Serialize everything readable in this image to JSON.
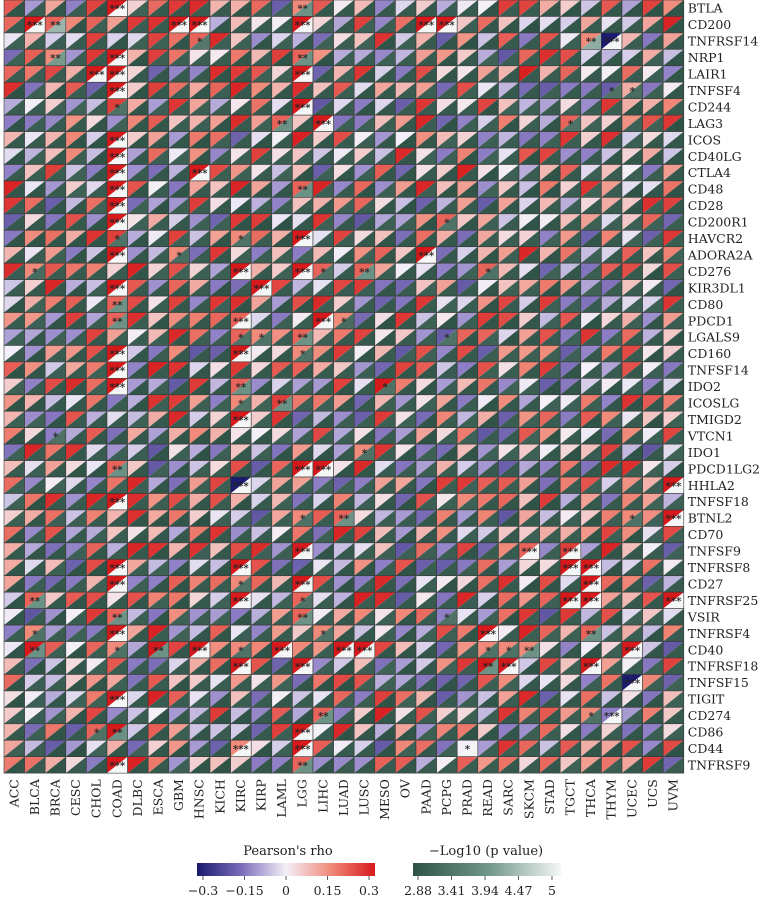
{
  "chart_data": {
    "type": "heatmap",
    "title": "",
    "xlabel": "",
    "ylabel": "",
    "cell_style": "split-triangle: upper-left = Pearson's rho, lower-right = -Log10 (p value)",
    "columns": [
      "ACC",
      "BLCA",
      "BRCA",
      "CESC",
      "CHOL",
      "COAD",
      "DLBC",
      "ESCA",
      "GBM",
      "HNSC",
      "KICH",
      "KIRC",
      "KIRP",
      "LAML",
      "LGG",
      "LIHC",
      "LUAD",
      "LUSC",
      "MESO",
      "OV",
      "PAAD",
      "PCPG",
      "PRAD",
      "READ",
      "SARC",
      "SKCM",
      "STAD",
      "TGCT",
      "THCA",
      "THYM",
      "UCEC",
      "UCS",
      "UVM"
    ],
    "rows": [
      "BTLA",
      "CD200",
      "TNFRSF14",
      "NRP1",
      "LAIR1",
      "TNFSF4",
      "CD244",
      "LAG3",
      "ICOS",
      "CD40LG",
      "CTLA4",
      "CD48",
      "CD28",
      "CD200R1",
      "HAVCR2",
      "ADORA2A",
      "CD276",
      "KIR3DL1",
      "CD80",
      "PDCD1",
      "LGALS9",
      "CD160",
      "TNFSF14",
      "IDO2",
      "ICOSLG",
      "TMIGD2",
      "VTCN1",
      "IDO1",
      "PDCD1LG2",
      "HHLA2",
      "TNFSF18",
      "BTNL2",
      "CD70",
      "TNFSF9",
      "TNFRSF8",
      "CD27",
      "TNFRSF25",
      "VSIR",
      "TNFRSF4",
      "CD40",
      "TNFRSF18",
      "TNFSF15",
      "TIGIT",
      "CD274",
      "CD86",
      "CD44",
      "TNFRSF9"
    ],
    "colors": {
      "rho_low": "#1a1a6e",
      "rho_mid_low": "#8f7fc6",
      "rho_zero": "#f4f0f8",
      "rho_mid_high": "#f08a7a",
      "rho_high": "#d7191c",
      "p_low": "#2f5247",
      "p_mid": "#5f8577",
      "p_high": "#f4f7f5",
      "grid": "#3a3a3a"
    },
    "sample_note": "values approximated from picture",
    "highlighted_cells": [
      {
        "row": "BTLA",
        "col": "COAD",
        "rho": 0.3,
        "logp": 5,
        "stars": "***"
      },
      {
        "row": "BTLA",
        "col": "LGG",
        "rho": 0.15,
        "logp": 3.9,
        "stars": "**"
      },
      {
        "row": "CD200",
        "col": "BLCA",
        "rho": 0.3,
        "logp": 5,
        "stars": "***"
      },
      {
        "row": "CD200",
        "col": "BRCA",
        "rho": 0.2,
        "logp": 4.3,
        "stars": "**"
      },
      {
        "row": "CD200",
        "col": "GBM",
        "rho": 0.3,
        "logp": 5,
        "stars": "***"
      },
      {
        "row": "CD200",
        "col": "HNSC",
        "rho": 0.3,
        "logp": 5,
        "stars": "***"
      },
      {
        "row": "CD200",
        "col": "LGG",
        "rho": 0.3,
        "logp": 5,
        "stars": "***"
      },
      {
        "row": "CD200",
        "col": "PAAD",
        "rho": 0.3,
        "logp": 5,
        "stars": "***"
      },
      {
        "row": "CD200",
        "col": "PCPG",
        "rho": 0.3,
        "logp": 5,
        "stars": "***"
      },
      {
        "row": "TNFRSF14",
        "col": "HNSC",
        "rho": 0.2,
        "logp": 3.5,
        "stars": "*"
      },
      {
        "row": "TNFRSF14",
        "col": "THCA",
        "rho": 0.15,
        "logp": 4.2,
        "stars": "**"
      },
      {
        "row": "TNFRSF14",
        "col": "THYM",
        "rho": -0.3,
        "logp": 5,
        "stars": "***"
      },
      {
        "row": "NRP1",
        "col": "BRCA",
        "rho": 0.15,
        "logp": 4.0,
        "stars": "**"
      },
      {
        "row": "NRP1",
        "col": "COAD",
        "rho": 0.3,
        "logp": 5,
        "stars": "***"
      },
      {
        "row": "NRP1",
        "col": "LGG",
        "rho": 0.2,
        "logp": 3.9,
        "stars": "**"
      },
      {
        "row": "LAIR1",
        "col": "CHOL",
        "rho": 0.3,
        "logp": 5,
        "stars": "***"
      },
      {
        "row": "LAIR1",
        "col": "COAD",
        "rho": 0.3,
        "logp": 5,
        "stars": "***"
      },
      {
        "row": "LAIR1",
        "col": "LGG",
        "rho": 0.3,
        "logp": 5,
        "stars": "***"
      },
      {
        "row": "TNFSF4",
        "col": "COAD",
        "rho": 0.3,
        "logp": 5,
        "stars": "***"
      },
      {
        "row": "TNFSF4",
        "col": "THYM",
        "rho": -0.2,
        "logp": 3.4,
        "stars": "*"
      },
      {
        "row": "TNFSF4",
        "col": "UCEC",
        "rho": 0.1,
        "logp": 3.3,
        "stars": "*"
      },
      {
        "row": "CD244",
        "col": "COAD",
        "rho": 0.25,
        "logp": 3.4,
        "stars": "*"
      },
      {
        "row": "CD244",
        "col": "LGG",
        "rho": 0.3,
        "logp": 5,
        "stars": "***"
      },
      {
        "row": "LAG3",
        "col": "LAML",
        "rho": 0.2,
        "logp": 3.9,
        "stars": "**"
      },
      {
        "row": "LAG3",
        "col": "LIHC",
        "rho": 0.3,
        "logp": 5,
        "stars": "***"
      },
      {
        "row": "LAG3",
        "col": "TGCT",
        "rho": 0.2,
        "logp": 3.4,
        "stars": "*"
      },
      {
        "row": "ICOS",
        "col": "COAD",
        "rho": 0.3,
        "logp": 5,
        "stars": "***"
      },
      {
        "row": "CD40LG",
        "col": "COAD",
        "rho": 0.3,
        "logp": 5,
        "stars": "***"
      },
      {
        "row": "CTLA4",
        "col": "COAD",
        "rho": 0.3,
        "logp": 5,
        "stars": "***"
      },
      {
        "row": "CTLA4",
        "col": "HNSC",
        "rho": 0.3,
        "logp": 5,
        "stars": "***"
      },
      {
        "row": "CD48",
        "col": "COAD",
        "rho": 0.3,
        "logp": 5,
        "stars": "***"
      },
      {
        "row": "CD48",
        "col": "LGG",
        "rho": 0.2,
        "logp": 3.9,
        "stars": "**"
      },
      {
        "row": "CD28",
        "col": "COAD",
        "rho": 0.3,
        "logp": 5,
        "stars": "***"
      },
      {
        "row": "CD200R1",
        "col": "COAD",
        "rho": 0.3,
        "logp": 5,
        "stars": "***"
      },
      {
        "row": "CD200R1",
        "col": "PCPG",
        "rho": 0.2,
        "logp": 3.4,
        "stars": "*"
      },
      {
        "row": "HAVCR2",
        "col": "COAD",
        "rho": 0.25,
        "logp": 3.4,
        "stars": "*"
      },
      {
        "row": "HAVCR2",
        "col": "KIRC",
        "rho": 0.15,
        "logp": 3.4,
        "stars": "*"
      },
      {
        "row": "HAVCR2",
        "col": "LGG",
        "rho": 0.3,
        "logp": 5,
        "stars": "***"
      },
      {
        "row": "ADORA2A",
        "col": "COAD",
        "rho": 0.3,
        "logp": 5,
        "stars": "***"
      },
      {
        "row": "ADORA2A",
        "col": "GBM",
        "rho": 0.15,
        "logp": 3.3,
        "stars": "*"
      },
      {
        "row": "ADORA2A",
        "col": "PAAD",
        "rho": 0.3,
        "logp": 5,
        "stars": "***"
      },
      {
        "row": "CD276",
        "col": "BLCA",
        "rho": 0.15,
        "logp": 3.3,
        "stars": "*"
      },
      {
        "row": "CD276",
        "col": "KIRC",
        "rho": 0.3,
        "logp": 5,
        "stars": "***"
      },
      {
        "row": "CD276",
        "col": "LGG",
        "rho": 0.3,
        "logp": 5,
        "stars": "***"
      },
      {
        "row": "CD276",
        "col": "LIHC",
        "rho": 0.2,
        "logp": 3.4,
        "stars": "*"
      },
      {
        "row": "CD276",
        "col": "LUSC",
        "rho": 0.2,
        "logp": 3.9,
        "stars": "**"
      },
      {
        "row": "CD276",
        "col": "READ",
        "rho": 0.2,
        "logp": 3.4,
        "stars": "*"
      },
      {
        "row": "KIR3DL1",
        "col": "COAD",
        "rho": 0.3,
        "logp": 5,
        "stars": "***"
      },
      {
        "row": "KIR3DL1",
        "col": "KIRP",
        "rho": 0.3,
        "logp": 5,
        "stars": "***"
      },
      {
        "row": "CD80",
        "col": "COAD",
        "rho": 0.2,
        "logp": 3.9,
        "stars": "**"
      },
      {
        "row": "PDCD1",
        "col": "COAD",
        "rho": 0.2,
        "logp": 3.9,
        "stars": "**"
      },
      {
        "row": "PDCD1",
        "col": "KIRC",
        "rho": 0.2,
        "logp": 5,
        "stars": "***"
      },
      {
        "row": "PDCD1",
        "col": "LIHC",
        "rho": 0.3,
        "logp": 5,
        "stars": "***"
      },
      {
        "row": "PDCD1",
        "col": "LUAD",
        "rho": 0.15,
        "logp": 3.3,
        "stars": "*"
      },
      {
        "row": "LGALS9",
        "col": "KIRC",
        "rho": 0.2,
        "logp": 3.4,
        "stars": "*"
      },
      {
        "row": "LGALS9",
        "col": "KIRP",
        "rho": 0.15,
        "logp": 3.4,
        "stars": "*"
      },
      {
        "row": "LGALS9",
        "col": "LGG",
        "rho": 0.2,
        "logp": 3.9,
        "stars": "**"
      },
      {
        "row": "LGALS9",
        "col": "PCPG",
        "rho": -0.2,
        "logp": 3.4,
        "stars": "*"
      },
      {
        "row": "CD160",
        "col": "COAD",
        "rho": 0.3,
        "logp": 5,
        "stars": "***"
      },
      {
        "row": "CD160",
        "col": "KIRC",
        "rho": 0.3,
        "logp": 5,
        "stars": "***"
      },
      {
        "row": "CD160",
        "col": "LGG",
        "rho": 0.15,
        "logp": 3.4,
        "stars": "*"
      },
      {
        "row": "TNFSF14",
        "col": "COAD",
        "rho": 0.3,
        "logp": 5,
        "stars": "***"
      },
      {
        "row": "IDO2",
        "col": "COAD",
        "rho": 0.3,
        "logp": 5,
        "stars": "***"
      },
      {
        "row": "IDO2",
        "col": "KIRC",
        "rho": 0.2,
        "logp": 3.9,
        "stars": "**"
      },
      {
        "row": "IDO2",
        "col": "MESO",
        "rho": 0.3,
        "logp": 3.4,
        "stars": "*"
      },
      {
        "row": "ICOSLG",
        "col": "KIRC",
        "rho": 0.15,
        "logp": 3.4,
        "stars": "*"
      },
      {
        "row": "ICOSLG",
        "col": "LAML",
        "rho": 0.25,
        "logp": 3.9,
        "stars": "**"
      },
      {
        "row": "TMIGD2",
        "col": "KIRC",
        "rho": 0.3,
        "logp": 5,
        "stars": "***"
      },
      {
        "row": "VTCN1",
        "col": "BRCA",
        "rho": -0.15,
        "logp": 3.4,
        "stars": "*"
      },
      {
        "row": "IDO1",
        "col": "LUSC",
        "rho": 0.15,
        "logp": 3.4,
        "stars": "*"
      },
      {
        "row": "PDCD1LG2",
        "col": "COAD",
        "rho": 0.2,
        "logp": 3.9,
        "stars": "**"
      },
      {
        "row": "PDCD1LG2",
        "col": "LGG",
        "rho": 0.3,
        "logp": 5,
        "stars": "***"
      },
      {
        "row": "PDCD1LG2",
        "col": "LIHC",
        "rho": 0.3,
        "logp": 5,
        "stars": "***"
      },
      {
        "row": "HHLA2",
        "col": "KIRC",
        "rho": -0.3,
        "logp": 5,
        "stars": "***"
      },
      {
        "row": "HHLA2",
        "col": "UVM",
        "rho": 0.3,
        "logp": 5,
        "stars": "***"
      },
      {
        "row": "TNFSF18",
        "col": "COAD",
        "rho": 0.3,
        "logp": 5,
        "stars": "***"
      },
      {
        "row": "BTNL2",
        "col": "LGG",
        "rho": 0.15,
        "logp": 3.4,
        "stars": "*"
      },
      {
        "row": "BTNL2",
        "col": "LUAD",
        "rho": 0.2,
        "logp": 3.9,
        "stars": "**"
      },
      {
        "row": "BTNL2",
        "col": "UCEC",
        "rho": 0.15,
        "logp": 3.4,
        "stars": "*"
      },
      {
        "row": "BTNL2",
        "col": "UVM",
        "rho": 0.3,
        "logp": 5,
        "stars": "***"
      },
      {
        "row": "TNFSF9",
        "col": "LGG",
        "rho": 0.3,
        "logp": 5,
        "stars": "***"
      },
      {
        "row": "TNFSF9",
        "col": "SKCM",
        "rho": 0.2,
        "logp": 5,
        "stars": "***"
      },
      {
        "row": "TNFSF9",
        "col": "TGCT",
        "rho": 0.25,
        "logp": 5,
        "stars": "***"
      },
      {
        "row": "TNFRSF8",
        "col": "COAD",
        "rho": 0.3,
        "logp": 5,
        "stars": "***"
      },
      {
        "row": "TNFRSF8",
        "col": "KIRC",
        "rho": 0.3,
        "logp": 5,
        "stars": "***"
      },
      {
        "row": "TNFRSF8",
        "col": "TGCT",
        "rho": 0.3,
        "logp": 5,
        "stars": "***"
      },
      {
        "row": "TNFRSF8",
        "col": "THCA",
        "rho": 0.3,
        "logp": 5,
        "stars": "***"
      },
      {
        "row": "CD27",
        "col": "COAD",
        "rho": 0.3,
        "logp": 5,
        "stars": "***"
      },
      {
        "row": "CD27",
        "col": "KIRC",
        "rho": 0.15,
        "logp": 3.4,
        "stars": "*"
      },
      {
        "row": "CD27",
        "col": "LGG",
        "rho": 0.3,
        "logp": 5,
        "stars": "***"
      },
      {
        "row": "CD27",
        "col": "THCA",
        "rho": 0.3,
        "logp": 5,
        "stars": "***"
      },
      {
        "row": "TNFRSF25",
        "col": "BLCA",
        "rho": 0.2,
        "logp": 3.9,
        "stars": "**"
      },
      {
        "row": "TNFRSF25",
        "col": "KIRC",
        "rho": 0.3,
        "logp": 5,
        "stars": "***"
      },
      {
        "row": "TNFRSF25",
        "col": "LGG",
        "rho": 0.2,
        "logp": 3.4,
        "stars": "*"
      },
      {
        "row": "TNFRSF25",
        "col": "TGCT",
        "rho": 0.3,
        "logp": 5,
        "stars": "***"
      },
      {
        "row": "TNFRSF25",
        "col": "THCA",
        "rho": 0.3,
        "logp": 5,
        "stars": "***"
      },
      {
        "row": "TNFRSF25",
        "col": "UVM",
        "rho": 0.3,
        "logp": 5,
        "stars": "***"
      },
      {
        "row": "VSIR",
        "col": "COAD",
        "rho": 0.2,
        "logp": 3.9,
        "stars": "**"
      },
      {
        "row": "VSIR",
        "col": "LGG",
        "rho": 0.2,
        "logp": 3.9,
        "stars": "**"
      },
      {
        "row": "VSIR",
        "col": "PCPG",
        "rho": -0.15,
        "logp": 3.4,
        "stars": "*"
      },
      {
        "row": "TNFRSF4",
        "col": "BLCA",
        "rho": 0.15,
        "logp": 3.4,
        "stars": "*"
      },
      {
        "row": "TNFRSF4",
        "col": "COAD",
        "rho": 0.3,
        "logp": 5,
        "stars": "***"
      },
      {
        "row": "TNFRSF4",
        "col": "LIHC",
        "rho": 0.15,
        "logp": 3.4,
        "stars": "*"
      },
      {
        "row": "TNFRSF4",
        "col": "READ",
        "rho": 0.3,
        "logp": 5,
        "stars": "***"
      },
      {
        "row": "TNFRSF4",
        "col": "THCA",
        "rho": 0.2,
        "logp": 3.9,
        "stars": "**"
      },
      {
        "row": "CD40",
        "col": "BLCA",
        "rho": 0.3,
        "logp": 3.9,
        "stars": "**"
      },
      {
        "row": "CD40",
        "col": "COAD",
        "rho": 0.15,
        "logp": 3.4,
        "stars": "*"
      },
      {
        "row": "CD40",
        "col": "ESCA",
        "rho": 0.3,
        "logp": 3.9,
        "stars": "**"
      },
      {
        "row": "CD40",
        "col": "HNSC",
        "rho": 0.3,
        "logp": 5,
        "stars": "***"
      },
      {
        "row": "CD40",
        "col": "KIRC",
        "rho": 0.15,
        "logp": 3.4,
        "stars": "*"
      },
      {
        "row": "CD40",
        "col": "LAML",
        "rho": 0.3,
        "logp": 5,
        "stars": "***"
      },
      {
        "row": "CD40",
        "col": "LUAD",
        "rho": 0.3,
        "logp": 5,
        "stars": "***"
      },
      {
        "row": "CD40",
        "col": "LUSC",
        "rho": 0.3,
        "logp": 5,
        "stars": "***"
      },
      {
        "row": "CD40",
        "col": "READ",
        "rho": 0.15,
        "logp": 3.4,
        "stars": "*"
      },
      {
        "row": "CD40",
        "col": "SARC",
        "rho": 0.15,
        "logp": 3.4,
        "stars": "*"
      },
      {
        "row": "CD40",
        "col": "SKCM",
        "rho": 0.15,
        "logp": 3.9,
        "stars": "**"
      },
      {
        "row": "CD40",
        "col": "UCEC",
        "rho": 0.3,
        "logp": 5,
        "stars": "***"
      },
      {
        "row": "TNFRSF18",
        "col": "KIRC",
        "rho": 0.3,
        "logp": 5,
        "stars": "***"
      },
      {
        "row": "TNFRSF18",
        "col": "LGG",
        "rho": 0.3,
        "logp": 5,
        "stars": "***"
      },
      {
        "row": "TNFRSF18",
        "col": "READ",
        "rho": 0.3,
        "logp": 3.9,
        "stars": "**"
      },
      {
        "row": "TNFRSF18",
        "col": "SARC",
        "rho": 0.3,
        "logp": 5,
        "stars": "***"
      },
      {
        "row": "TNFRSF18",
        "col": "THCA",
        "rho": 0.3,
        "logp": 5,
        "stars": "***"
      },
      {
        "row": "TNFSF15",
        "col": "UCEC",
        "rho": -0.3,
        "logp": 5,
        "stars": "***"
      },
      {
        "row": "TIGIT",
        "col": "COAD",
        "rho": 0.3,
        "logp": 5,
        "stars": "***"
      },
      {
        "row": "CD274",
        "col": "LIHC",
        "rho": 0.2,
        "logp": 3.9,
        "stars": "**"
      },
      {
        "row": "CD274",
        "col": "THCA",
        "rho": 0.15,
        "logp": 3.4,
        "stars": "*"
      },
      {
        "row": "CD274",
        "col": "THYM",
        "rho": -0.15,
        "logp": 5,
        "stars": "***"
      },
      {
        "row": "CD86",
        "col": "CHOL",
        "rho": 0.2,
        "logp": 3.4,
        "stars": "*"
      },
      {
        "row": "CD86",
        "col": "COAD",
        "rho": 0.3,
        "logp": 3.9,
        "stars": "**"
      },
      {
        "row": "CD86",
        "col": "LGG",
        "rho": 0.3,
        "logp": 5,
        "stars": "***"
      },
      {
        "row": "CD44",
        "col": "KIRC",
        "rho": 0.15,
        "logp": 5,
        "stars": "***"
      },
      {
        "row": "CD44",
        "col": "LGG",
        "rho": 0.3,
        "logp": 5,
        "stars": "***"
      },
      {
        "row": "CD44",
        "col": "PRAD",
        "rho": 0.0,
        "logp": 5,
        "stars": "*"
      },
      {
        "row": "TNFRSF9",
        "col": "COAD",
        "rho": 0.3,
        "logp": 5,
        "stars": "***"
      },
      {
        "row": "TNFRSF9",
        "col": "LGG",
        "rho": 0.2,
        "logp": 3.9,
        "stars": "**"
      }
    ],
    "legend_rho": {
      "title": "Pearson's rho",
      "ticks": [
        "−0.3",
        "−0.15",
        "0",
        "0.15",
        "0.3"
      ],
      "range": [
        -0.3,
        0.3
      ]
    },
    "legend_p": {
      "title": "−Log10 (p value)",
      "ticks": [
        "2.88",
        "3.41",
        "3.94",
        "4.47",
        "5"
      ],
      "range": [
        2.88,
        5
      ]
    }
  }
}
